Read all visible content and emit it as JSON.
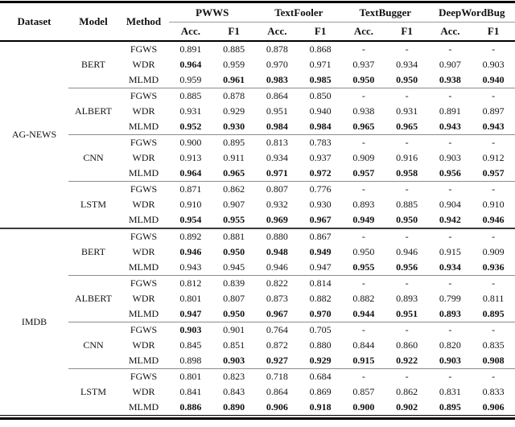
{
  "table": {
    "header": {
      "dataset": "Dataset",
      "model": "Model",
      "method": "Method",
      "groups": [
        "PWWS",
        "TextFooler",
        "TextBugger",
        "DeepWordBug"
      ],
      "sub": [
        "Acc.",
        "F1"
      ]
    },
    "datasets": [
      {
        "name": "AG-NEWS",
        "models": [
          {
            "name": "BERT",
            "rows": [
              {
                "method": "FGWS",
                "values": [
                  "0.891",
                  "0.885",
                  "0.878",
                  "0.868",
                  "-",
                  "-",
                  "-",
                  "-"
                ],
                "bold": [
                  0,
                  0,
                  0,
                  0,
                  0,
                  0,
                  0,
                  0
                ]
              },
              {
                "method": "WDR",
                "values": [
                  "0.964",
                  "0.959",
                  "0.970",
                  "0.971",
                  "0.937",
                  "0.934",
                  "0.907",
                  "0.903"
                ],
                "bold": [
                  1,
                  0,
                  0,
                  0,
                  0,
                  0,
                  0,
                  0
                ]
              },
              {
                "method": "MLMD",
                "values": [
                  "0.959",
                  "0.961",
                  "0.983",
                  "0.985",
                  "0.950",
                  "0.950",
                  "0.938",
                  "0.940"
                ],
                "bold": [
                  0,
                  1,
                  1,
                  1,
                  1,
                  1,
                  1,
                  1
                ]
              }
            ]
          },
          {
            "name": "ALBERT",
            "rows": [
              {
                "method": "FGWS",
                "values": [
                  "0.885",
                  "0.878",
                  "0.864",
                  "0.850",
                  "-",
                  "-",
                  "-",
                  "-"
                ],
                "bold": [
                  0,
                  0,
                  0,
                  0,
                  0,
                  0,
                  0,
                  0
                ]
              },
              {
                "method": "WDR",
                "values": [
                  "0.931",
                  "0.929",
                  "0.951",
                  "0.940",
                  "0.938",
                  "0.931",
                  "0.891",
                  "0.897"
                ],
                "bold": [
                  0,
                  0,
                  0,
                  0,
                  0,
                  0,
                  0,
                  0
                ]
              },
              {
                "method": "MLMD",
                "values": [
                  "0.952",
                  "0.930",
                  "0.984",
                  "0.984",
                  "0.965",
                  "0.965",
                  "0.943",
                  "0.943"
                ],
                "bold": [
                  1,
                  1,
                  1,
                  1,
                  1,
                  1,
                  1,
                  1
                ]
              }
            ]
          },
          {
            "name": "CNN",
            "rows": [
              {
                "method": "FGWS",
                "values": [
                  "0.900",
                  "0.895",
                  "0.813",
                  "0.783",
                  "-",
                  "-",
                  "-",
                  "-"
                ],
                "bold": [
                  0,
                  0,
                  0,
                  0,
                  0,
                  0,
                  0,
                  0
                ]
              },
              {
                "method": "WDR",
                "values": [
                  "0.913",
                  "0.911",
                  "0.934",
                  "0.937",
                  "0.909",
                  "0.916",
                  "0.903",
                  "0.912"
                ],
                "bold": [
                  0,
                  0,
                  0,
                  0,
                  0,
                  0,
                  0,
                  0
                ]
              },
              {
                "method": "MLMD",
                "values": [
                  "0.964",
                  "0.965",
                  "0.971",
                  "0.972",
                  "0.957",
                  "0.958",
                  "0.956",
                  "0.957"
                ],
                "bold": [
                  1,
                  1,
                  1,
                  1,
                  1,
                  1,
                  1,
                  1
                ]
              }
            ]
          },
          {
            "name": "LSTM",
            "rows": [
              {
                "method": "FGWS",
                "values": [
                  "0.871",
                  "0.862",
                  "0.807",
                  "0.776",
                  "-",
                  "-",
                  "-",
                  "-"
                ],
                "bold": [
                  0,
                  0,
                  0,
                  0,
                  0,
                  0,
                  0,
                  0
                ]
              },
              {
                "method": "WDR",
                "values": [
                  "0.910",
                  "0.907",
                  "0.932",
                  "0.930",
                  "0.893",
                  "0.885",
                  "0.904",
                  "0.910"
                ],
                "bold": [
                  0,
                  0,
                  0,
                  0,
                  0,
                  0,
                  0,
                  0
                ]
              },
              {
                "method": "MLMD",
                "values": [
                  "0.954",
                  "0.955",
                  "0.969",
                  "0.967",
                  "0.949",
                  "0.950",
                  "0.942",
                  "0.946"
                ],
                "bold": [
                  1,
                  1,
                  1,
                  1,
                  1,
                  1,
                  1,
                  1
                ]
              }
            ]
          }
        ]
      },
      {
        "name": "IMDB",
        "models": [
          {
            "name": "BERT",
            "rows": [
              {
                "method": "FGWS",
                "values": [
                  "0.892",
                  "0.881",
                  "0.880",
                  "0.867",
                  "-",
                  "-",
                  "-",
                  "-"
                ],
                "bold": [
                  0,
                  0,
                  0,
                  0,
                  0,
                  0,
                  0,
                  0
                ]
              },
              {
                "method": "WDR",
                "values": [
                  "0.946",
                  "0.950",
                  "0.948",
                  "0.949",
                  "0.950",
                  "0.946",
                  "0.915",
                  "0.909"
                ],
                "bold": [
                  1,
                  1,
                  1,
                  1,
                  0,
                  0,
                  0,
                  0
                ]
              },
              {
                "method": "MLMD",
                "values": [
                  "0.943",
                  "0.945",
                  "0.946",
                  "0.947",
                  "0.955",
                  "0.956",
                  "0.934",
                  "0.936"
                ],
                "bold": [
                  0,
                  0,
                  0,
                  0,
                  1,
                  1,
                  1,
                  1
                ]
              }
            ]
          },
          {
            "name": "ALBERT",
            "rows": [
              {
                "method": "FGWS",
                "values": [
                  "0.812",
                  "0.839",
                  "0.822",
                  "0.814",
                  "-",
                  "-",
                  "-",
                  "-"
                ],
                "bold": [
                  0,
                  0,
                  0,
                  0,
                  0,
                  0,
                  0,
                  0
                ]
              },
              {
                "method": "WDR",
                "values": [
                  "0.801",
                  "0.807",
                  "0.873",
                  "0.882",
                  "0.882",
                  "0.893",
                  "0.799",
                  "0.811"
                ],
                "bold": [
                  0,
                  0,
                  0,
                  0,
                  0,
                  0,
                  0,
                  0
                ]
              },
              {
                "method": "MLMD",
                "values": [
                  "0.947",
                  "0.950",
                  "0.967",
                  "0.970",
                  "0.944",
                  "0.951",
                  "0.893",
                  "0.895"
                ],
                "bold": [
                  1,
                  1,
                  1,
                  1,
                  1,
                  1,
                  1,
                  1
                ]
              }
            ]
          },
          {
            "name": "CNN",
            "rows": [
              {
                "method": "FGWS",
                "values": [
                  "0.903",
                  "0.901",
                  "0.764",
                  "0.705",
                  "-",
                  "-",
                  "-",
                  "-"
                ],
                "bold": [
                  1,
                  0,
                  0,
                  0,
                  0,
                  0,
                  0,
                  0
                ]
              },
              {
                "method": "WDR",
                "values": [
                  "0.845",
                  "0.851",
                  "0.872",
                  "0.880",
                  "0.844",
                  "0.860",
                  "0.820",
                  "0.835"
                ],
                "bold": [
                  0,
                  0,
                  0,
                  0,
                  0,
                  0,
                  0,
                  0
                ]
              },
              {
                "method": "MLMD",
                "values": [
                  "0.898",
                  "0.903",
                  "0.927",
                  "0.929",
                  "0.915",
                  "0.922",
                  "0.903",
                  "0.908"
                ],
                "bold": [
                  0,
                  1,
                  1,
                  1,
                  1,
                  1,
                  1,
                  1
                ]
              }
            ]
          },
          {
            "name": "LSTM",
            "rows": [
              {
                "method": "FGWS",
                "values": [
                  "0.801",
                  "0.823",
                  "0.718",
                  "0.684",
                  "-",
                  "-",
                  "-",
                  "-"
                ],
                "bold": [
                  0,
                  0,
                  0,
                  0,
                  0,
                  0,
                  0,
                  0
                ]
              },
              {
                "method": "WDR",
                "values": [
                  "0.841",
                  "0.843",
                  "0.864",
                  "0.869",
                  "0.857",
                  "0.862",
                  "0.831",
                  "0.833"
                ],
                "bold": [
                  0,
                  0,
                  0,
                  0,
                  0,
                  0,
                  0,
                  0
                ]
              },
              {
                "method": "MLMD",
                "values": [
                  "0.886",
                  "0.890",
                  "0.906",
                  "0.918",
                  "0.900",
                  "0.902",
                  "0.895",
                  "0.906"
                ],
                "bold": [
                  1,
                  1,
                  1,
                  1,
                  1,
                  1,
                  1,
                  1
                ]
              }
            ]
          }
        ]
      }
    ]
  }
}
